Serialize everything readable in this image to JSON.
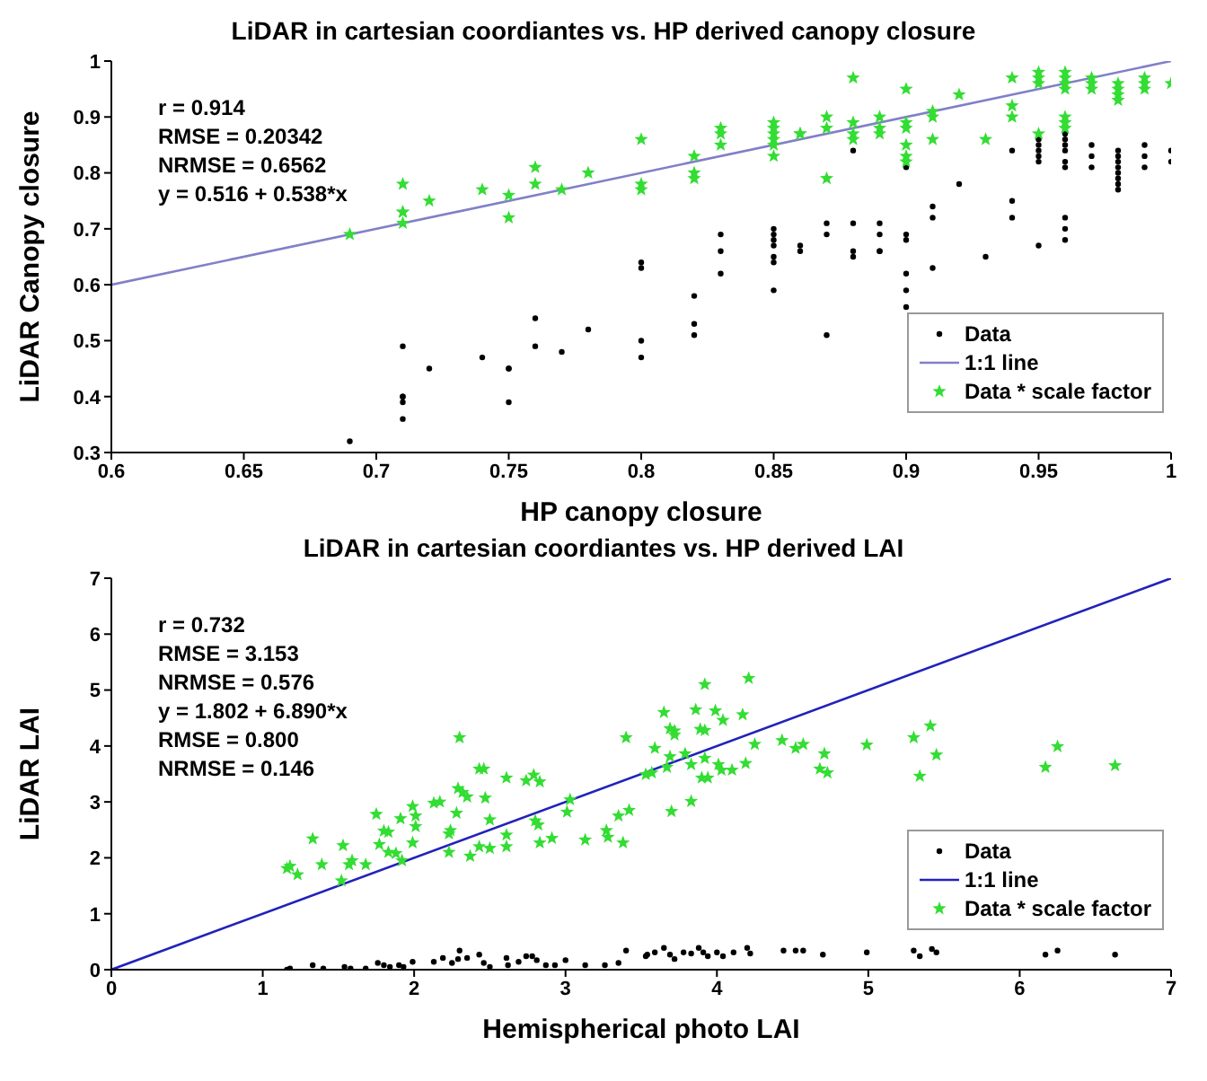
{
  "chart_data": [
    {
      "type": "scatter",
      "title": "LiDAR in cartesian coordiantes vs. HP derived canopy closure",
      "xlabel": "HP canopy closure",
      "ylabel": "LiDAR Canopy closure",
      "xlim": [
        0.6,
        1
      ],
      "xticks": [
        0.6,
        0.65,
        0.7,
        0.75,
        0.8,
        0.85,
        0.9,
        0.95,
        1
      ],
      "ylim": [
        0.3,
        1
      ],
      "yticks": [
        0.3,
        0.4,
        0.5,
        0.6,
        0.7,
        0.8,
        0.9,
        1
      ],
      "legend": "bottom right",
      "annotations": [
        "r = 0.914",
        "RMSE = 0.20342",
        "NRMSE = 0.6562",
        "y = 0.516 + 0.538*x"
      ],
      "series": [
        {
          "name": "Data",
          "marker": "circle",
          "color": "#000000",
          "x": [
            0.69,
            0.71,
            0.71,
            0.71,
            0.71,
            0.71,
            0.72,
            0.74,
            0.75,
            0.75,
            0.75,
            0.76,
            0.76,
            0.77,
            0.78,
            0.8,
            0.8,
            0.8,
            0.8,
            0.82,
            0.82,
            0.82,
            0.83,
            0.83,
            0.83,
            0.85,
            0.85,
            0.85,
            0.85,
            0.85,
            0.85,
            0.85,
            0.86,
            0.86,
            0.87,
            0.87,
            0.87,
            0.88,
            0.88,
            0.88,
            0.88,
            0.89,
            0.89,
            0.89,
            0.89,
            0.9,
            0.9,
            0.9,
            0.9,
            0.9,
            0.9,
            0.91,
            0.91,
            0.91,
            0.92,
            0.93,
            0.94,
            0.94,
            0.94,
            0.95,
            0.95,
            0.95,
            0.95,
            0.95,
            0.95,
            0.96,
            0.96,
            0.96,
            0.96,
            0.96,
            0.96,
            0.96,
            0.96,
            0.96,
            0.97,
            0.97,
            0.97,
            0.98,
            0.98,
            0.98,
            0.98,
            0.98,
            0.98,
            0.98,
            0.98,
            0.99,
            0.99,
            0.99,
            1,
            1
          ],
          "values": [
            0.32,
            0.49,
            0.4,
            0.4,
            0.39,
            0.36,
            0.45,
            0.47,
            0.45,
            0.45,
            0.39,
            0.54,
            0.49,
            0.48,
            0.52,
            0.64,
            0.63,
            0.5,
            0.47,
            0.58,
            0.53,
            0.51,
            0.69,
            0.66,
            0.62,
            0.7,
            0.69,
            0.68,
            0.67,
            0.65,
            0.64,
            0.59,
            0.67,
            0.66,
            0.71,
            0.69,
            0.51,
            0.84,
            0.71,
            0.66,
            0.65,
            0.71,
            0.69,
            0.66,
            0.66,
            0.81,
            0.69,
            0.68,
            0.62,
            0.59,
            0.56,
            0.74,
            0.72,
            0.63,
            0.78,
            0.65,
            0.84,
            0.75,
            0.72,
            0.86,
            0.85,
            0.84,
            0.83,
            0.82,
            0.67,
            0.87,
            0.86,
            0.85,
            0.84,
            0.82,
            0.81,
            0.72,
            0.7,
            0.68,
            0.85,
            0.83,
            0.81,
            0.84,
            0.83,
            0.82,
            0.81,
            0.8,
            0.79,
            0.78,
            0.77,
            0.85,
            0.83,
            0.81,
            0.84,
            0.82
          ]
        },
        {
          "name": "1:1 line",
          "type": "line",
          "marker": "none",
          "color": "#8080c8",
          "x": [
            0.6,
            1
          ],
          "values": [
            0.6,
            1
          ]
        },
        {
          "name": "Data * scale factor",
          "marker": "star",
          "color": "#33dd33",
          "x": [
            0.69,
            0.71,
            0.71,
            0.71,
            0.71,
            0.72,
            0.74,
            0.75,
            0.75,
            0.76,
            0.76,
            0.77,
            0.78,
            0.8,
            0.8,
            0.8,
            0.82,
            0.82,
            0.82,
            0.83,
            0.83,
            0.83,
            0.85,
            0.85,
            0.85,
            0.85,
            0.85,
            0.85,
            0.86,
            0.86,
            0.87,
            0.87,
            0.87,
            0.88,
            0.88,
            0.88,
            0.88,
            0.89,
            0.89,
            0.89,
            0.9,
            0.9,
            0.9,
            0.9,
            0.9,
            0.9,
            0.91,
            0.91,
            0.91,
            0.92,
            0.93,
            0.94,
            0.94,
            0.94,
            0.95,
            0.95,
            0.95,
            0.95,
            0.96,
            0.96,
            0.96,
            0.96,
            0.96,
            0.96,
            0.96,
            0.97,
            0.97,
            0.97,
            0.98,
            0.98,
            0.98,
            0.98,
            0.99,
            0.99,
            0.99,
            1
          ],
          "values": [
            0.69,
            0.78,
            0.73,
            0.73,
            0.71,
            0.75,
            0.77,
            0.76,
            0.72,
            0.81,
            0.78,
            0.77,
            0.8,
            0.86,
            0.78,
            0.77,
            0.83,
            0.8,
            0.79,
            0.88,
            0.87,
            0.85,
            0.89,
            0.88,
            0.87,
            0.86,
            0.85,
            0.83,
            0.87,
            0.87,
            0.9,
            0.88,
            0.79,
            0.97,
            0.89,
            0.87,
            0.86,
            0.9,
            0.88,
            0.87,
            0.95,
            0.89,
            0.88,
            0.85,
            0.83,
            0.82,
            0.91,
            0.9,
            0.86,
            0.94,
            0.86,
            0.97,
            0.92,
            0.9,
            0.98,
            0.97,
            0.96,
            0.87,
            0.98,
            0.97,
            0.96,
            0.95,
            0.9,
            0.89,
            0.88,
            0.97,
            0.96,
            0.95,
            0.96,
            0.95,
            0.94,
            0.93,
            0.97,
            0.96,
            0.95,
            0.96
          ]
        }
      ]
    },
    {
      "type": "scatter",
      "title": "LiDAR in cartesian coordiantes vs. HP derived LAI",
      "xlabel": "Hemispherical photo LAI",
      "ylabel": "LiDAR LAI",
      "xlim": [
        0,
        7
      ],
      "xticks": [
        0,
        1,
        2,
        3,
        4,
        5,
        6,
        7
      ],
      "ylim": [
        0,
        7
      ],
      "yticks": [
        0,
        1,
        2,
        3,
        4,
        5,
        6,
        7
      ],
      "legend": "bottom right",
      "annotations": [
        "r = 0.732",
        "RMSE = 3.153",
        "NRMSE = 0.576",
        "y = 1.802 + 6.890*x",
        "RMSE = 0.800",
        "NRMSE = 0.146"
      ],
      "series": [
        {
          "name": "Data",
          "marker": "circle",
          "color": "#000000",
          "x": [
            1.16,
            1.18,
            1.33,
            1.4,
            1.54,
            1.58,
            1.68,
            1.76,
            1.8,
            1.84,
            1.9,
            1.93,
            1.99,
            2.13,
            2.19,
            2.25,
            2.29,
            2.3,
            2.35,
            2.43,
            2.46,
            2.5,
            2.61,
            2.62,
            2.69,
            2.74,
            2.78,
            2.81,
            2.87,
            2.93,
            3.0,
            3.13,
            3.26,
            3.35,
            3.4,
            3.53,
            3.54,
            3.59,
            3.65,
            3.69,
            3.72,
            3.78,
            3.83,
            3.88,
            3.91,
            3.94,
            4.0,
            4.04,
            4.11,
            4.2,
            4.22,
            4.44,
            4.52,
            4.57,
            4.7,
            4.99,
            5.3,
            5.34,
            5.42,
            5.45,
            6.17,
            6.25,
            6.63
          ],
          "values": [
            0.0,
            0.02,
            0.08,
            0.02,
            0.05,
            0.02,
            0.02,
            0.12,
            0.08,
            0.05,
            0.08,
            0.05,
            0.14,
            0.14,
            0.21,
            0.12,
            0.19,
            0.34,
            0.21,
            0.27,
            0.12,
            0.05,
            0.21,
            0.08,
            0.14,
            0.24,
            0.24,
            0.17,
            0.08,
            0.08,
            0.17,
            0.08,
            0.08,
            0.12,
            0.34,
            0.24,
            0.27,
            0.31,
            0.39,
            0.27,
            0.19,
            0.31,
            0.29,
            0.39,
            0.31,
            0.24,
            0.31,
            0.24,
            0.31,
            0.39,
            0.29,
            0.34,
            0.34,
            0.34,
            0.27,
            0.31,
            0.34,
            0.24,
            0.37,
            0.31,
            0.27,
            0.34,
            0.27
          ]
        },
        {
          "name": "1:1 line",
          "type": "line",
          "marker": "none",
          "color": "#2222bb",
          "x": [
            0,
            7
          ],
          "values": [
            0,
            7
          ]
        },
        {
          "name": "Data * scale factor",
          "marker": "star",
          "color": "#33dd33",
          "x": [
            1.16,
            1.18,
            1.23,
            1.33,
            1.39,
            1.53,
            1.52,
            1.57,
            1.59,
            1.68,
            1.75,
            1.77,
            1.8,
            1.83,
            1.83,
            1.88,
            1.91,
            1.92,
            1.99,
            2.01,
            2.01,
            1.99,
            2.13,
            2.17,
            2.23,
            2.24,
            2.23,
            2.3,
            2.29,
            2.32,
            2.35,
            2.28,
            2.43,
            2.46,
            2.47,
            2.43,
            2.5,
            2.5,
            2.37,
            2.61,
            2.61,
            2.61,
            2.74,
            2.79,
            2.83,
            2.8,
            2.82,
            2.83,
            2.91,
            3.01,
            3.13,
            3.27,
            3.28,
            3.38,
            3.4,
            3.42,
            3.35,
            3.03,
            4.21,
            3.92,
            3.65,
            3.86,
            3.99,
            4.04,
            4.17,
            3.69,
            3.72,
            3.72,
            3.89,
            3.92,
            3.59,
            3.69,
            3.79,
            3.92,
            3.67,
            3.83,
            4.01,
            4.03,
            4.1,
            4.19,
            4.25,
            3.9,
            3.94,
            3.53,
            3.57,
            3.7,
            3.83,
            4.43,
            4.52,
            4.57,
            4.71,
            4.68,
            4.73,
            4.99,
            5.3,
            5.41,
            5.45,
            5.34,
            6.17,
            6.25,
            6.63
          ],
          "values": [
            1.81,
            1.85,
            1.7,
            2.34,
            1.88,
            2.22,
            1.59,
            1.88,
            1.95,
            1.88,
            2.78,
            2.24,
            2.48,
            2.46,
            2.1,
            2.08,
            2.7,
            1.95,
            2.92,
            2.75,
            2.56,
            2.27,
            2.98,
            3.0,
            2.43,
            2.49,
            2.1,
            4.15,
            3.24,
            3.17,
            3.09,
            2.8,
            3.59,
            3.59,
            3.07,
            2.2,
            2.68,
            2.17,
            2.03,
            3.43,
            2.41,
            2.2,
            3.38,
            3.48,
            3.36,
            2.66,
            2.59,
            2.27,
            2.35,
            2.82,
            2.32,
            2.49,
            2.37,
            2.27,
            4.15,
            2.85,
            2.75,
            3.04,
            5.21,
            5.1,
            4.6,
            4.65,
            4.63,
            4.46,
            4.56,
            4.31,
            4.27,
            4.2,
            4.3,
            4.28,
            3.96,
            3.81,
            3.86,
            3.78,
            3.62,
            3.67,
            3.67,
            3.57,
            3.57,
            3.69,
            4.03,
            3.43,
            3.43,
            3.49,
            3.52,
            2.83,
            3.01,
            4.1,
            3.96,
            4.03,
            3.86,
            3.59,
            3.52,
            4.02,
            4.15,
            4.36,
            3.84,
            3.46,
            3.62,
            3.99,
            3.65
          ]
        }
      ]
    }
  ]
}
